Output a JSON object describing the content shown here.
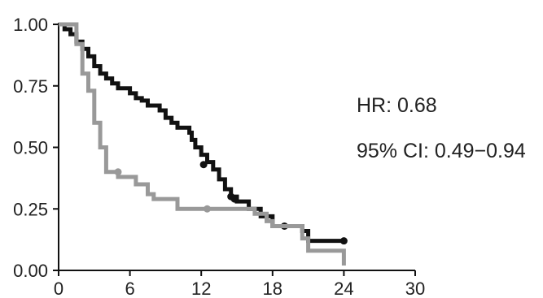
{
  "chart_data": {
    "type": "line",
    "subtype": "step (Kaplan-Meier survival curve)",
    "title": "",
    "xlabel": "",
    "ylabel": "",
    "xlim": [
      0,
      30
    ],
    "ylim": [
      0,
      1
    ],
    "x_ticks": [
      "0",
      "6",
      "12",
      "18",
      "24",
      "30"
    ],
    "y_ticks": [
      "0.00",
      "0.25",
      "0.50",
      "0.75",
      "1.00"
    ],
    "grid": false,
    "legend": "none",
    "annotations": [
      "HR: 0.68",
      "95% CI: 0.49−0.94"
    ],
    "series": [
      {
        "color": "#111111",
        "line_width": 5,
        "points": [
          [
            0,
            1.0
          ],
          [
            0.5,
            0.98
          ],
          [
            1,
            0.96
          ],
          [
            1.5,
            0.93
          ],
          [
            2,
            0.9
          ],
          [
            2.5,
            0.87
          ],
          [
            3,
            0.83
          ],
          [
            3.5,
            0.8
          ],
          [
            4,
            0.78
          ],
          [
            4.5,
            0.76
          ],
          [
            5,
            0.74
          ],
          [
            6,
            0.72
          ],
          [
            6.5,
            0.7
          ],
          [
            7,
            0.69
          ],
          [
            7.5,
            0.67
          ],
          [
            8.5,
            0.65
          ],
          [
            9,
            0.62
          ],
          [
            9.5,
            0.6
          ],
          [
            10,
            0.58
          ],
          [
            11,
            0.56
          ],
          [
            11.2,
            0.53
          ],
          [
            11.5,
            0.5
          ],
          [
            12,
            0.47
          ],
          [
            12.5,
            0.44
          ],
          [
            13,
            0.41
          ],
          [
            13.5,
            0.37
          ],
          [
            14,
            0.33
          ],
          [
            14.5,
            0.3
          ],
          [
            15,
            0.28
          ],
          [
            16,
            0.25
          ],
          [
            17,
            0.22
          ],
          [
            18,
            0.18
          ],
          [
            20.5,
            0.16
          ],
          [
            21,
            0.12
          ],
          [
            24,
            0.12
          ]
        ],
        "censor_marks": [
          [
            12.2,
            0.43
          ],
          [
            14.5,
            0.3
          ],
          [
            14.8,
            0.29
          ],
          [
            19,
            0.18
          ],
          [
            24,
            0.12
          ]
        ]
      },
      {
        "color": "#999999",
        "line_width": 5,
        "points": [
          [
            0,
            1.0
          ],
          [
            1.5,
            0.92
          ],
          [
            2,
            0.8
          ],
          [
            2.5,
            0.73
          ],
          [
            3,
            0.6
          ],
          [
            3.5,
            0.5
          ],
          [
            4,
            0.4
          ],
          [
            5,
            0.38
          ],
          [
            6.5,
            0.35
          ],
          [
            7.5,
            0.31
          ],
          [
            8,
            0.29
          ],
          [
            10,
            0.25
          ],
          [
            12.5,
            0.25
          ],
          [
            14,
            0.25
          ],
          [
            15,
            0.25
          ],
          [
            16.5,
            0.23
          ],
          [
            17.5,
            0.2
          ],
          [
            18,
            0.18
          ],
          [
            19,
            0.18
          ],
          [
            20.5,
            0.13
          ],
          [
            21,
            0.08
          ],
          [
            24,
            0.08
          ],
          [
            24,
            0.02
          ]
        ],
        "censor_marks": [
          [
            5,
            0.4
          ],
          [
            12.5,
            0.25
          ]
        ]
      }
    ]
  }
}
